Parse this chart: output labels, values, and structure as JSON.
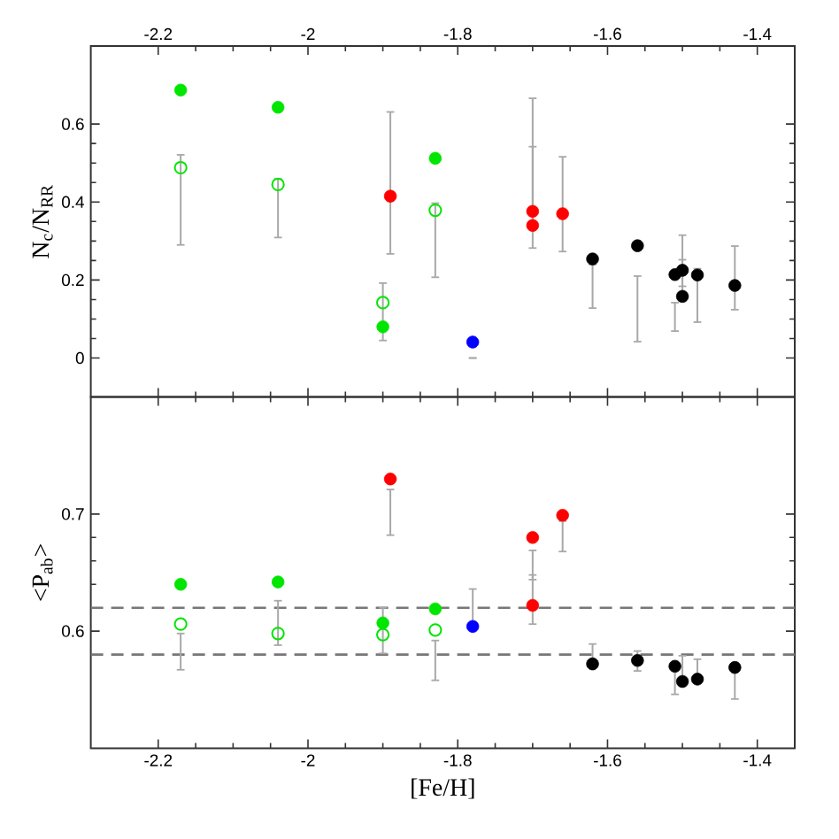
{
  "chart_data": [
    {
      "type": "scatter",
      "ylabel": "N$_{c}$/N$_{RR}$",
      "xlim": [
        -2.29,
        -1.35
      ],
      "ylim": [
        -0.1,
        0.8
      ],
      "xticks": [
        -2.2,
        -2,
        -1.8,
        -1.6,
        -1.4
      ],
      "yticks": [
        0,
        0.2,
        0.4,
        0.6
      ],
      "marker": "circle",
      "series": [
        {
          "color": "#00e600",
          "x": [
            -2.17,
            -2.04,
            -1.9,
            -1.83
          ],
          "values": [
            0.687,
            0.643,
            0.08,
            0.512
          ]
        },
        {
          "color": "#00e600",
          "x": [
            -2.17,
            -2.04,
            -1.9,
            -1.83
          ],
          "values": [
            0.488,
            0.445,
            0.142,
            0.379
          ],
          "errors": [
            [
              0.29,
              0.521
            ],
            [
              0.309,
              0.459
            ],
            [
              0.045,
              0.192
            ],
            [
              0.207,
              0.397
            ]
          ]
        },
        {
          "color": "#ff0000",
          "x": [
            -1.89,
            -1.7,
            -1.7,
            -1.66
          ],
          "values": [
            0.415,
            0.376,
            0.34,
            0.37
          ],
          "errors": [
            [
              0.267,
              0.631
            ],
            [
              0.282,
              0.666
            ],
            [
              0.33,
              0.542
            ],
            [
              0.273,
              0.516
            ]
          ]
        },
        {
          "color": "#0000ff",
          "x": [
            -1.78
          ],
          "values": [
            0.041
          ],
          "errors": [
            [
              0,
              0
            ]
          ]
        },
        {
          "color": "#000000",
          "x": [
            -1.62,
            -1.56,
            -1.51,
            -1.5,
            -1.5,
            -1.48,
            -1.43
          ],
          "values": [
            0.254,
            0.288,
            0.214,
            0.225,
            0.158,
            0.213,
            0.186
          ],
          "errors": [
            [
              0.128,
              0.24
            ],
            [
              0.042,
              0.21
            ],
            [
              0.069,
              0.142
            ],
            [
              0.184,
              0.315
            ],
            [
              0.16,
              0.252
            ],
            [
              0.092,
              0.229
            ],
            [
              0.124,
              0.287
            ]
          ]
        }
      ]
    },
    {
      "type": "scatter",
      "xlabel": "[Fe/H]",
      "ylabel": "<P$_{ab}$>",
      "xlim": [
        -2.29,
        -1.35
      ],
      "ylim": [
        0.5,
        0.8
      ],
      "xticks": [
        -2.2,
        -2,
        -1.8,
        -1.6,
        -1.4
      ],
      "yticks": [
        0.6,
        0.7
      ],
      "marker": "circle",
      "ref_lines": [
        {
          "axis": "y",
          "value": 0.62,
          "color": "#777777",
          "line_style": "dashed"
        },
        {
          "axis": "y",
          "value": 0.58,
          "color": "#777777",
          "line_style": "dashed"
        }
      ],
      "series": [
        {
          "color": "#00e600",
          "x": [
            -2.17,
            -2.04,
            -1.9,
            -1.83
          ],
          "values": [
            0.64,
            0.642,
            0.607,
            0.619
          ]
        },
        {
          "color": "#00e600",
          "x": [
            -2.17,
            -2.04,
            -1.9,
            -1.83
          ],
          "values": [
            0.606,
            0.598,
            0.597,
            0.601
          ],
          "errors": [
            [
              0.567,
              0.598
            ],
            [
              0.588,
              0.626
            ],
            [
              0.581,
              0.62
            ],
            [
              0.558,
              0.592
            ]
          ]
        },
        {
          "color": "#ff0000",
          "x": [
            -1.89,
            -1.7,
            -1.7,
            -1.66
          ],
          "values": [
            0.73,
            0.68,
            0.622,
            0.699
          ],
          "errors": [
            [
              0.682,
              0.721
            ],
            [
              0.644,
              0.669
            ],
            [
              0.606,
              0.648
            ],
            [
              0.668,
              0.694
            ]
          ]
        },
        {
          "color": "#0000ff",
          "x": [
            -1.78
          ],
          "values": [
            0.604
          ],
          "errors": [
            [
              0.601,
              0.636
            ]
          ]
        },
        {
          "color": "#000000",
          "x": [
            -1.62,
            -1.56,
            -1.51,
            -1.5,
            -1.48,
            -1.43
          ],
          "values": [
            0.572,
            0.575,
            0.57,
            0.557,
            0.559,
            0.569
          ],
          "errors": [
            [
              0.572,
              0.589
            ],
            [
              0.566,
              0.583
            ],
            [
              0.546,
              0.57
            ],
            [
              0.556,
              0.579
            ],
            [
              0.559,
              0.576
            ],
            [
              0.542,
              0.569
            ]
          ]
        }
      ]
    }
  ]
}
